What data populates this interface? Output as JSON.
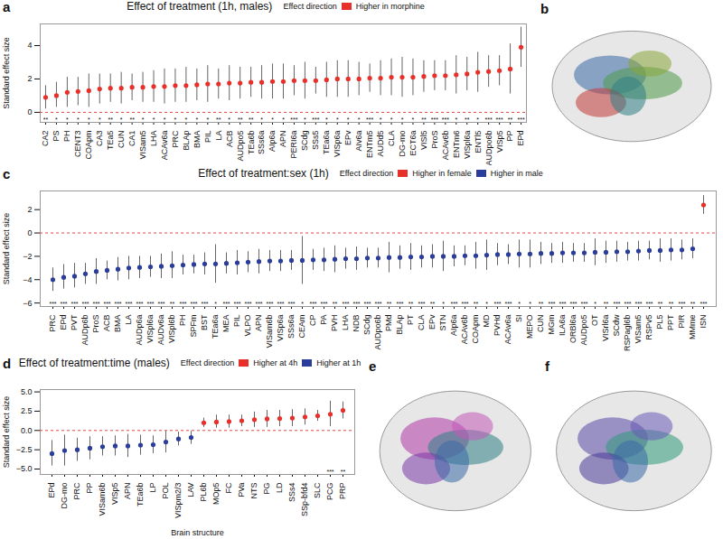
{
  "chart_data": [
    {
      "panel": "a",
      "type": "scatter",
      "title": "Effect of treatment (1h, males)",
      "y_label": "Standard effect size",
      "legend_title": "Effect direction",
      "legend": "top",
      "grid": false,
      "baseline": 0,
      "ylim": [
        -0.6,
        5.3
      ],
      "yticks": [
        0,
        2,
        4
      ],
      "categories": [
        "CA2",
        "PS",
        "PH",
        "CENT3",
        "COApm",
        "CA3",
        "TEa5",
        "CUN",
        "CA1",
        "VISam5",
        "LHA",
        "ACAv6a",
        "PRC",
        "BLAp",
        "BMA",
        "PIL",
        "LA",
        "ACB",
        "AUDpo5",
        "TEa6b",
        "SSs6a",
        "AIp6a",
        "APN",
        "PERI6a",
        "SCdg",
        "SSs5",
        "TEa6a",
        "VISp6a",
        "EPv",
        "AIv6a",
        "ENTm5",
        "AUDd5",
        "CLA",
        "DG-mo",
        "ECT6a",
        "VISl5",
        "ProS",
        "ACAv6b",
        "ENTm6",
        "VISpl6a",
        "ENTl5",
        "AUDpo6b",
        "VISp5",
        "PP",
        "EPd"
      ],
      "series": [
        {
          "name": "Higher in morphine",
          "color": "#e8302a",
          "values": [
            0.9,
            1.0,
            1.2,
            1.25,
            1.3,
            1.4,
            1.45,
            1.45,
            1.5,
            1.5,
            1.55,
            1.55,
            1.6,
            1.6,
            1.65,
            1.7,
            1.7,
            1.75,
            1.75,
            1.8,
            1.8,
            1.85,
            1.85,
            1.9,
            1.9,
            1.9,
            1.95,
            2.0,
            2.0,
            2.0,
            2.05,
            2.05,
            2.1,
            2.1,
            2.1,
            2.15,
            2.2,
            2.2,
            2.25,
            2.3,
            2.4,
            2.45,
            2.5,
            2.6,
            3.9
          ],
          "lower": [
            0.2,
            0.3,
            0.3,
            0.4,
            0.3,
            0.5,
            0.6,
            0.5,
            0.7,
            0.6,
            0.6,
            0.5,
            0.6,
            0.6,
            0.7,
            0.6,
            0.8,
            0.7,
            0.8,
            0.9,
            0.8,
            0.8,
            0.8,
            1.0,
            0.8,
            1.1,
            0.9,
            0.9,
            0.9,
            1.0,
            1.2,
            1.0,
            1.0,
            0.9,
            1.0,
            1.2,
            1.3,
            1.3,
            1.1,
            1.3,
            1.2,
            1.5,
            1.6,
            1.1,
            2.7
          ],
          "upper": [
            1.6,
            1.8,
            2.1,
            2.1,
            2.3,
            2.3,
            2.3,
            2.4,
            2.3,
            2.4,
            2.5,
            2.6,
            2.6,
            2.7,
            2.6,
            2.8,
            2.6,
            2.8,
            2.7,
            2.7,
            2.8,
            2.9,
            2.9,
            2.8,
            3.0,
            2.7,
            3.0,
            3.1,
            3.1,
            3.0,
            2.9,
            3.1,
            3.2,
            3.3,
            3.2,
            3.1,
            3.1,
            3.1,
            3.4,
            3.3,
            3.6,
            3.4,
            3.4,
            4.1,
            5.1
          ]
        }
      ],
      "significance": [
        "**",
        "*",
        "*",
        "*",
        "*",
        "*",
        "**",
        "*",
        "**",
        "*",
        "*",
        "*",
        "*",
        "*",
        "*",
        "*",
        "**",
        "*",
        "**",
        "**",
        "*",
        "*",
        "*",
        "***",
        "*",
        "***",
        "*",
        "*",
        "*",
        "*",
        "***",
        "*",
        "*",
        "*",
        "*",
        "**",
        "***",
        "***",
        "*",
        "**",
        "*",
        "***",
        "***",
        "**",
        "***"
      ]
    },
    {
      "panel": "c",
      "type": "scatter",
      "title": "Effect of treatment:sex (1h)",
      "y_label": "Standard effect size",
      "legend_title": "Effect direction",
      "legend": "top",
      "grid": false,
      "baseline": 0,
      "ylim": [
        -6.3,
        3.6
      ],
      "yticks": [
        {
          "value": -6,
          "label": "−6"
        },
        {
          "value": -4,
          "label": "−4"
        },
        {
          "value": -2,
          "label": "−2"
        },
        0,
        2
      ],
      "categories": [
        "PRC",
        "EPd",
        "PVT",
        "AUDp6b",
        "ProS",
        "ACB",
        "BMA",
        "LA",
        "AUDp6a",
        "VISpl6a",
        "AUDv6a",
        "VISpl6b",
        "PH",
        "SPFm",
        "BST",
        "TEa6a",
        "MEA",
        "PIL",
        "VLPO",
        "APN",
        "VISam6b",
        "VISp6a",
        "SSs6a",
        "CEAm",
        "CP",
        "PA",
        "PVH",
        "LHA",
        "NDB",
        "SCdg",
        "AUDpo6b",
        "PMd",
        "BLAp",
        "PT",
        "CLA",
        "EPv",
        "STN",
        "AIp6a",
        "ACAv6b",
        "COApm",
        "MD",
        "PVHd",
        "ACAv6a",
        "SI",
        "MEPO",
        "CUN",
        "MGm",
        "ILA6a",
        "ORBl6a",
        "AUDpo5",
        "OT",
        "VISrl6a",
        "SCdw",
        "RSPagl6b",
        "VISam5",
        "RSPv5",
        "PL5",
        "PPT",
        "PIR",
        "MMme",
        "ISN"
      ],
      "series": [
        {
          "name": "Higher in female",
          "color": "#e8302a",
          "values": [
            null,
            null,
            null,
            null,
            null,
            null,
            null,
            null,
            null,
            null,
            null,
            null,
            null,
            null,
            null,
            null,
            null,
            null,
            null,
            null,
            null,
            null,
            null,
            null,
            null,
            null,
            null,
            null,
            null,
            null,
            null,
            null,
            null,
            null,
            null,
            null,
            null,
            null,
            null,
            null,
            null,
            null,
            null,
            null,
            null,
            null,
            null,
            null,
            null,
            null,
            null,
            null,
            null,
            null,
            null,
            null,
            null,
            null,
            null,
            null,
            2.4
          ],
          "lower": [
            null,
            null,
            null,
            null,
            null,
            null,
            null,
            null,
            null,
            null,
            null,
            null,
            null,
            null,
            null,
            null,
            null,
            null,
            null,
            null,
            null,
            null,
            null,
            null,
            null,
            null,
            null,
            null,
            null,
            null,
            null,
            null,
            null,
            null,
            null,
            null,
            null,
            null,
            null,
            null,
            null,
            null,
            null,
            null,
            null,
            null,
            null,
            null,
            null,
            null,
            null,
            null,
            null,
            null,
            null,
            null,
            null,
            null,
            null,
            null,
            1.6
          ],
          "upper": [
            null,
            null,
            null,
            null,
            null,
            null,
            null,
            null,
            null,
            null,
            null,
            null,
            null,
            null,
            null,
            null,
            null,
            null,
            null,
            null,
            null,
            null,
            null,
            null,
            null,
            null,
            null,
            null,
            null,
            null,
            null,
            null,
            null,
            null,
            null,
            null,
            null,
            null,
            null,
            null,
            null,
            null,
            null,
            null,
            null,
            null,
            null,
            null,
            null,
            null,
            null,
            null,
            null,
            null,
            null,
            null,
            null,
            null,
            null,
            null,
            3.2
          ]
        },
        {
          "name": "Higher in male",
          "color": "#2b3d9b",
          "values": [
            -4.0,
            -3.8,
            -3.7,
            -3.5,
            -3.3,
            -3.2,
            -3.1,
            -3.0,
            -2.95,
            -2.9,
            -2.85,
            -2.8,
            -2.75,
            -2.7,
            -2.65,
            -2.65,
            -2.6,
            -2.55,
            -2.5,
            -2.45,
            -2.4,
            -2.4,
            -2.35,
            -2.35,
            -2.3,
            -2.3,
            -2.25,
            -2.2,
            -2.2,
            -2.15,
            -2.15,
            -2.1,
            -2.1,
            -2.05,
            -2.05,
            -2.0,
            -2.0,
            -2.0,
            -1.95,
            -1.95,
            -1.9,
            -1.85,
            -1.85,
            -1.8,
            -1.8,
            -1.75,
            -1.75,
            -1.7,
            -1.7,
            -1.7,
            -1.65,
            -1.65,
            -1.6,
            -1.6,
            -1.55,
            -1.5,
            -1.5,
            -1.45,
            -1.45,
            -1.35,
            null
          ],
          "lower": [
            -5.0,
            -4.8,
            -4.7,
            -4.4,
            -4.4,
            -4.0,
            -4.1,
            -4.0,
            -3.9,
            -3.8,
            -3.9,
            -3.9,
            -3.6,
            -3.5,
            -3.6,
            -4.3,
            -3.5,
            -3.6,
            -3.4,
            -3.5,
            -3.3,
            -3.3,
            -3.2,
            -4.4,
            -3.2,
            -3.3,
            -3.4,
            -3.1,
            -3.2,
            -3.0,
            -3.0,
            -3.4,
            -3.1,
            -3.2,
            -3.0,
            -3.0,
            -3.3,
            -2.9,
            -2.8,
            -3.1,
            -3.2,
            -2.8,
            -2.7,
            -3.0,
            -3.0,
            -2.7,
            -2.6,
            -2.6,
            -2.5,
            -2.5,
            -2.8,
            -2.6,
            -2.5,
            -2.4,
            -2.4,
            -2.3,
            -2.5,
            -2.4,
            -2.3,
            -2.2,
            null
          ],
          "upper": [
            -3.0,
            -2.7,
            -2.6,
            -2.6,
            -2.2,
            -2.4,
            -2.1,
            -2.0,
            -2.0,
            -2.0,
            -1.8,
            -1.6,
            -1.9,
            -1.9,
            -1.7,
            -1.0,
            -1.7,
            -1.5,
            -1.6,
            -1.4,
            -1.5,
            -1.5,
            -1.5,
            -0.3,
            -1.4,
            -1.3,
            -1.1,
            -1.3,
            -1.2,
            -1.3,
            -1.3,
            -0.8,
            -1.1,
            -0.9,
            -1.1,
            -1.0,
            -0.7,
            -1.1,
            -1.1,
            -0.8,
            -0.6,
            -0.9,
            -1.0,
            -0.6,
            -0.6,
            -0.8,
            -0.9,
            -0.8,
            -0.9,
            -0.9,
            -0.5,
            -0.7,
            -0.7,
            -0.8,
            -0.7,
            -0.7,
            -0.5,
            -0.5,
            -0.6,
            -0.5,
            null
          ]
        }
      ],
      "significance": [
        "***",
        "***",
        "***",
        "***",
        "***",
        "***",
        "***",
        "***",
        "***",
        "***",
        "***",
        "**",
        "***",
        "***",
        "***",
        "*",
        "***",
        "***",
        "***",
        "***",
        "***",
        "***",
        "***",
        "*",
        "***",
        "***",
        "**",
        "***",
        "***",
        "***",
        "***",
        "**",
        "***",
        "**",
        "***",
        "**",
        "*",
        "***",
        "***",
        "**",
        "*",
        "***",
        "***",
        "*",
        "*",
        "**",
        "***",
        "***",
        "***",
        "***",
        "*",
        "**",
        "***",
        "***",
        "***",
        "***",
        "**",
        "**",
        "***",
        "**",
        "***"
      ]
    },
    {
      "panel": "d",
      "type": "scatter",
      "title": "Effect of treatment:time (males)",
      "y_label": "Standard effect size",
      "x_label": "Brain structure",
      "legend_title": "Effect direction",
      "legend": "top",
      "grid": false,
      "baseline": 0,
      "ylim": [
        -5.7,
        5.3
      ],
      "yticks": [
        {
          "value": -5,
          "label": "−5.0"
        },
        {
          "value": -2.5,
          "label": "−2.5"
        },
        {
          "value": 0,
          "label": "0.0"
        },
        2.5,
        {
          "value": 5,
          "label": "5.0"
        }
      ],
      "categories": [
        "EPd",
        "DG-mo",
        "PRC",
        "PP",
        "VISam6b",
        "VISp5",
        "APN",
        "TEa6b",
        "LP",
        "POL",
        "VISpm2/3",
        "LAV",
        "PL6b",
        "MOp5",
        "FC",
        "PVa",
        "NTS",
        "PG",
        "LD",
        "SSs4",
        "SSp-bfd4",
        "SLC",
        "PCG",
        "PRP"
      ],
      "series": [
        {
          "name": "Higher at 4h",
          "color": "#e8302a",
          "values": [
            null,
            null,
            null,
            null,
            null,
            null,
            null,
            null,
            null,
            null,
            null,
            null,
            1.0,
            1.1,
            1.15,
            1.25,
            1.4,
            1.5,
            1.55,
            1.6,
            1.75,
            1.9,
            2.1,
            2.6
          ],
          "lower": [
            null,
            null,
            null,
            null,
            null,
            null,
            null,
            null,
            null,
            null,
            null,
            null,
            0.4,
            0.3,
            0.3,
            0.5,
            0.4,
            0.4,
            0.5,
            0.5,
            0.7,
            1.2,
            0.5,
            1.5
          ],
          "upper": [
            null,
            null,
            null,
            null,
            null,
            null,
            null,
            null,
            null,
            null,
            null,
            null,
            1.6,
            2.0,
            2.0,
            2.0,
            2.4,
            2.6,
            2.6,
            2.7,
            2.8,
            2.6,
            3.8,
            3.7
          ]
        },
        {
          "name": "Higher at 1h",
          "color": "#2b3d9b",
          "values": [
            -3.0,
            -2.6,
            -2.5,
            -2.3,
            -2.1,
            -2.0,
            -2.0,
            -1.9,
            -1.85,
            -1.5,
            -1.1,
            -0.9,
            null,
            null,
            null,
            null,
            null,
            null,
            null,
            null,
            null,
            null,
            null,
            null
          ],
          "lower": [
            -4.6,
            -4.6,
            -4.0,
            -3.8,
            -3.3,
            -3.3,
            -3.5,
            -3.2,
            -3.0,
            -2.9,
            -2.0,
            -1.8,
            null,
            null,
            null,
            null,
            null,
            null,
            null,
            null,
            null,
            null,
            null,
            null
          ],
          "upper": [
            -1.3,
            -0.6,
            -1.0,
            -0.8,
            -0.8,
            -0.7,
            -0.5,
            -0.6,
            -0.7,
            -0.1,
            -0.2,
            -0.1,
            null,
            null,
            null,
            null,
            null,
            null,
            null,
            null,
            null,
            null,
            null,
            null
          ]
        }
      ],
      "significance": [
        null,
        null,
        null,
        null,
        null,
        null,
        null,
        null,
        null,
        null,
        null,
        null,
        null,
        null,
        null,
        null,
        null,
        null,
        null,
        null,
        null,
        null,
        "***",
        "**"
      ]
    }
  ],
  "images": [
    {
      "panel": "b"
    },
    {
      "panel": "e"
    },
    {
      "panel": "f"
    }
  ]
}
